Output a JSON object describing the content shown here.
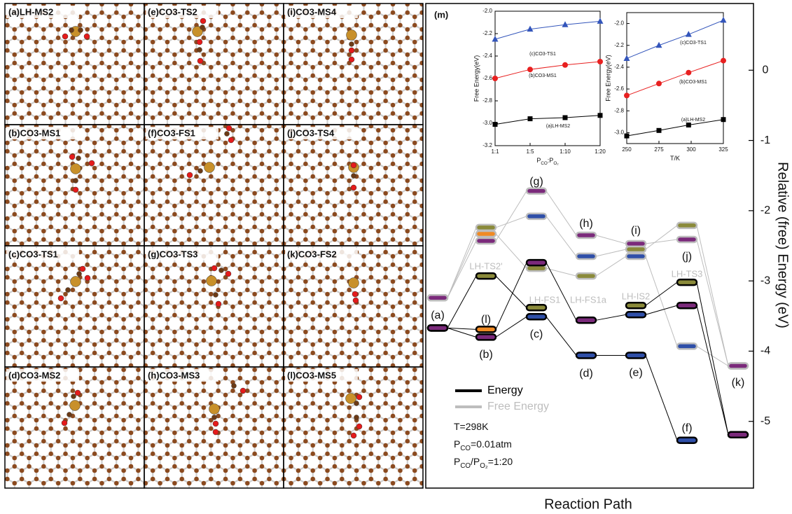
{
  "panels": [
    [
      "(a)LH-MS2",
      "(e)CO3-TS2",
      "(i)CO3-MS4"
    ],
    [
      "(b)CO3-MS1",
      "(f)CO3-FS1",
      "(j)CO3-TS4"
    ],
    [
      "(c)CO3-TS1",
      "(g)CO3-TS3",
      "(k)CO3-FS2"
    ],
    [
      "(d)CO3-MS2",
      "(h)CO3-MS3",
      "(l)CO3-MS5"
    ]
  ],
  "chart_data": [
    {
      "type": "energy-diagram",
      "label": "(m)",
      "y_label": "Relative (free) Energy (eV)",
      "x_label": "Reaction Path",
      "ylim": [
        -5.95,
        0.95
      ],
      "yticks": [
        0,
        -1,
        -2,
        -3,
        -4,
        -5
      ],
      "series": [
        {
          "name": "Free Energy",
          "color": "#bdbdbd",
          "paths": [
            {
              "values": [
                -3.24,
                -2.43,
                -1.72,
                -2.35,
                -2.47,
                -2.41,
                -4.21
              ],
              "colors": [
                "#7b2a7b",
                "#7b2a7b",
                "#7b2a7b",
                "#7b2a7b",
                "#7b2a7b",
                "#7b2a7b",
                "#7b2a7b"
              ]
            },
            {
              "values": [
                -3.24,
                -2.24,
                -2.08,
                -2.65,
                -2.55,
                -2.21,
                -4.21
              ],
              "colors": [
                "#7b2a7b",
                "#8a8a3a",
                "#2f4fa8",
                "#2f4fa8",
                "#8a8a3a",
                "#8a8a3a",
                "#7b2a7b"
              ]
            },
            {
              "values": [
                -3.24,
                -2.33,
                -2.82,
                -2.93,
                -2.65,
                -3.93,
                -4.21
              ],
              "colors": [
                "#7b2a7b",
                "#f08a24",
                "#8a8a3a",
                "#8a8a3a",
                "#2f4fa8",
                "#2f4fa8",
                "#7b2a7b"
              ]
            }
          ]
        },
        {
          "name": "Energy",
          "color": "#000000",
          "paths": [
            {
              "values": [
                -3.67,
                -3.69,
                -2.74,
                -3.56,
                -3.48,
                -3.35,
                -5.19
              ],
              "colors": [
                "#7b2a7b",
                "#f08a24",
                "#7b2a7b",
                "#7b2a7b",
                "#2f4fa8",
                "#7b2a7b",
                "#7b2a7b"
              ]
            },
            {
              "values": [
                -3.67,
                -3.8,
                -3.51,
                -4.06,
                -4.06,
                -5.27,
                null
              ],
              "colors": [
                "#7b2a7b",
                "#7b2a7b",
                "#2f4fa8",
                "#2f4fa8",
                "#2f4fa8",
                "#2f4fa8",
                "#7b2a7b"
              ]
            },
            {
              "values": [
                -3.67,
                -2.93,
                -3.38,
                null,
                -3.35,
                -3.02,
                -5.19
              ],
              "colors": [
                "#7b2a7b",
                "#8a8a3a",
                "#8a8a3a",
                "#8a8a3a",
                "#8a8a3a",
                "#8a8a3a",
                "#7b2a7b"
              ]
            }
          ]
        }
      ],
      "level_labels": [
        "(a)",
        "(l)",
        "(b)",
        "(g)",
        "(c)",
        "(h)",
        "(d)",
        "(i)",
        "(e)",
        "(j)",
        "(f)",
        "(k)"
      ],
      "path_labels": [
        "LH-TS2'",
        "LH-FS1",
        "LH-FS1a",
        "LH-IS2",
        "LH-TS3"
      ],
      "conditions": [
        [
          {
            "text": "T=298K"
          }
        ],
        [
          {
            "text": "P"
          },
          {
            "sub": "CO"
          },
          {
            "text": "=0.01atm"
          }
        ],
        [
          {
            "text": "P"
          },
          {
            "sub": "CO"
          },
          {
            "text": "/P"
          },
          {
            "sub": "O₂"
          },
          {
            "text": "=1:20"
          }
        ]
      ]
    },
    {
      "type": "line",
      "y_label": "Free Energy(eV)",
      "x_label": [
        {
          "text": "P"
        },
        {
          "sub": "CO"
        },
        {
          "text": ":P"
        },
        {
          "sub": "O₂"
        }
      ],
      "categories": [
        "1:1",
        "1:5",
        "1:10",
        "1:20"
      ],
      "ylim": [
        -3.2,
        -2.0
      ],
      "yticks": [
        {
          "value": -2.0,
          "label": "-2.0"
        },
        {
          "value": -2.2,
          "label": "-2.2"
        },
        {
          "value": -2.4,
          "label": "-2.4"
        },
        {
          "value": -2.6,
          "label": "-2.6"
        },
        {
          "value": -2.8,
          "label": "-2.8"
        },
        {
          "value": -3.0,
          "label": "-3.0"
        },
        {
          "value": -3.2,
          "label": "-3.2"
        }
      ],
      "series": [
        {
          "name": "(c)CO3-TS1",
          "color": "#3355bb",
          "marker": "triangle",
          "values": [
            -2.25,
            -2.16,
            -2.12,
            -2.09
          ]
        },
        {
          "name": "(b)CO3-MS1",
          "color": "#e82020",
          "marker": "circle",
          "values": [
            -2.6,
            -2.52,
            -2.48,
            -2.45
          ]
        },
        {
          "name": "(a)LH-MS2",
          "color": "#000000",
          "marker": "square",
          "values": [
            -3.01,
            -2.96,
            -2.95,
            -2.93
          ]
        }
      ]
    },
    {
      "type": "line",
      "y_label": "Free Energy(eV)",
      "x_label": [
        {
          "text": "T/K"
        }
      ],
      "x": [
        250,
        275,
        298,
        325
      ],
      "xlim": [
        250,
        325
      ],
      "xticks": [
        250,
        275,
        300,
        325
      ],
      "ylim": [
        -3.1,
        -1.9
      ],
      "yticks": [
        {
          "value": -2.0,
          "label": "-2.0"
        },
        {
          "value": -2.2,
          "label": "-2.2"
        },
        {
          "value": -2.4,
          "label": "-2.4"
        },
        {
          "value": -2.6,
          "label": "-2.6"
        },
        {
          "value": -2.8,
          "label": "-2.8"
        },
        {
          "value": -3.0,
          "label": "-3.0"
        }
      ],
      "series": [
        {
          "name": "(c)CO3-TS1",
          "color": "#3355bb",
          "marker": "triangle",
          "values": [
            -2.32,
            -2.2,
            -2.1,
            -1.97
          ]
        },
        {
          "name": "(b)CO3-MS1",
          "color": "#e82020",
          "marker": "circle",
          "values": [
            -2.66,
            -2.55,
            -2.45,
            -2.34
          ]
        },
        {
          "name": "(a)LH-MS2",
          "color": "#000000",
          "marker": "square",
          "values": [
            -3.03,
            -2.98,
            -2.93,
            -2.88
          ]
        }
      ]
    }
  ]
}
